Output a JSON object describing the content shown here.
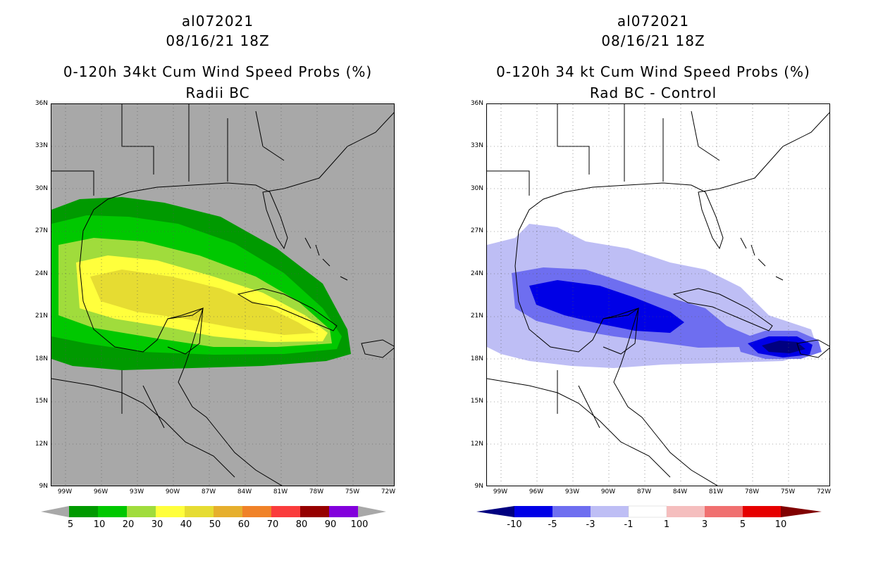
{
  "left_panel": {
    "title_id": "al072021",
    "title_date": "08/16/21 18Z",
    "title_main": "0-120h 34kt Cum Wind Speed Probs (%)",
    "title_sub": "Radii BC",
    "colorbar_labels": [
      "5",
      "10",
      "20",
      "30",
      "40",
      "50",
      "60",
      "70",
      "80",
      "90",
      "100"
    ],
    "colorbar_colors": [
      "#009a00",
      "#00c800",
      "#a0dc3c",
      "#ffff3c",
      "#e6dc32",
      "#e6af2d",
      "#f08228",
      "#fa3c3c",
      "#960000",
      "#8200dc"
    ]
  },
  "right_panel": {
    "title_id": "al072021",
    "title_date": "08/16/21 18Z",
    "title_main": "0-120h 34 kt Cum Wind Speed Probs (%)",
    "title_sub": "Rad BC - Control",
    "colorbar_labels": [
      "-10",
      "-5",
      "-3",
      "-1",
      "1",
      "3",
      "5",
      "10"
    ],
    "colorbar_colors": [
      "#0000e6",
      "#6e6ef0",
      "#bebef5",
      "#ffffff",
      "#f5bebe",
      "#f07070",
      "#e60000"
    ]
  },
  "axes": {
    "lat_labels": [
      "36N",
      "33N",
      "30N",
      "27N",
      "24N",
      "21N",
      "18N",
      "15N",
      "12N",
      "9N"
    ],
    "lon_labels": [
      "99W",
      "96W",
      "93W",
      "90W",
      "87W",
      "84W",
      "81W",
      "78W",
      "75W",
      "72W"
    ]
  }
}
